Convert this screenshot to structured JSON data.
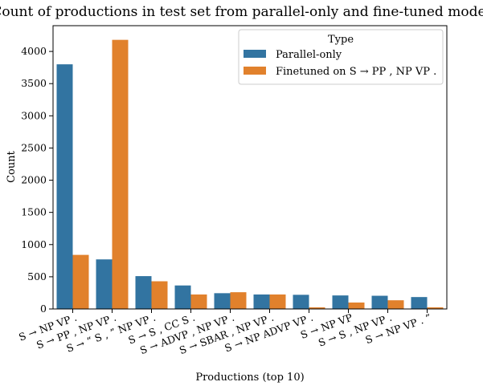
{
  "chart_data": {
    "type": "bar",
    "title": "Count of productions in test set from parallel-only and fine-tuned models",
    "xlabel": "Productions (top 10)",
    "ylabel": "Count",
    "ylim": [
      0,
      4400
    ],
    "yticks": [
      0,
      500,
      1000,
      1500,
      2000,
      2500,
      3000,
      3500,
      4000
    ],
    "categories": [
      "S → NP VP .",
      "S → PP , NP VP .",
      "S → “ S , ” NP VP .",
      "S → S , CC S .",
      "S → ADVP , NP VP .",
      "S → SBAR , NP VP .",
      "S → NP ADVP VP .",
      "S → NP VP",
      "S → S , NP VP .",
      "S → NP VP . ”"
    ],
    "series": [
      {
        "name": "Parallel-only",
        "color": "#3274a1",
        "values": [
          3800,
          770,
          510,
          365,
          245,
          225,
          220,
          210,
          205,
          185
        ]
      },
      {
        "name": "Finetuned on S → PP , NP VP .",
        "color": "#e1812c",
        "values": [
          840,
          4180,
          430,
          225,
          260,
          225,
          25,
          100,
          135,
          25
        ]
      }
    ],
    "legend": {
      "title": "Type",
      "position": "top-right"
    },
    "grid": false
  }
}
